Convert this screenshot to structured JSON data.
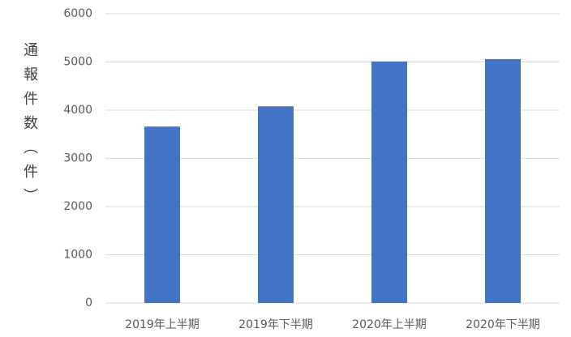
{
  "chart_data": {
    "type": "bar",
    "ylabel": "通報件数（件）",
    "categories": [
      "2019年上半期",
      "2019年下半期",
      "2020年上半期",
      "2020年下半期"
    ],
    "values": [
      3660,
      4080,
      5010,
      5060
    ],
    "color": "#4472c4",
    "ylim": [
      0,
      6000
    ],
    "yticks": [
      0,
      1000,
      2000,
      3000,
      4000,
      5000,
      6000
    ],
    "grid": true
  }
}
